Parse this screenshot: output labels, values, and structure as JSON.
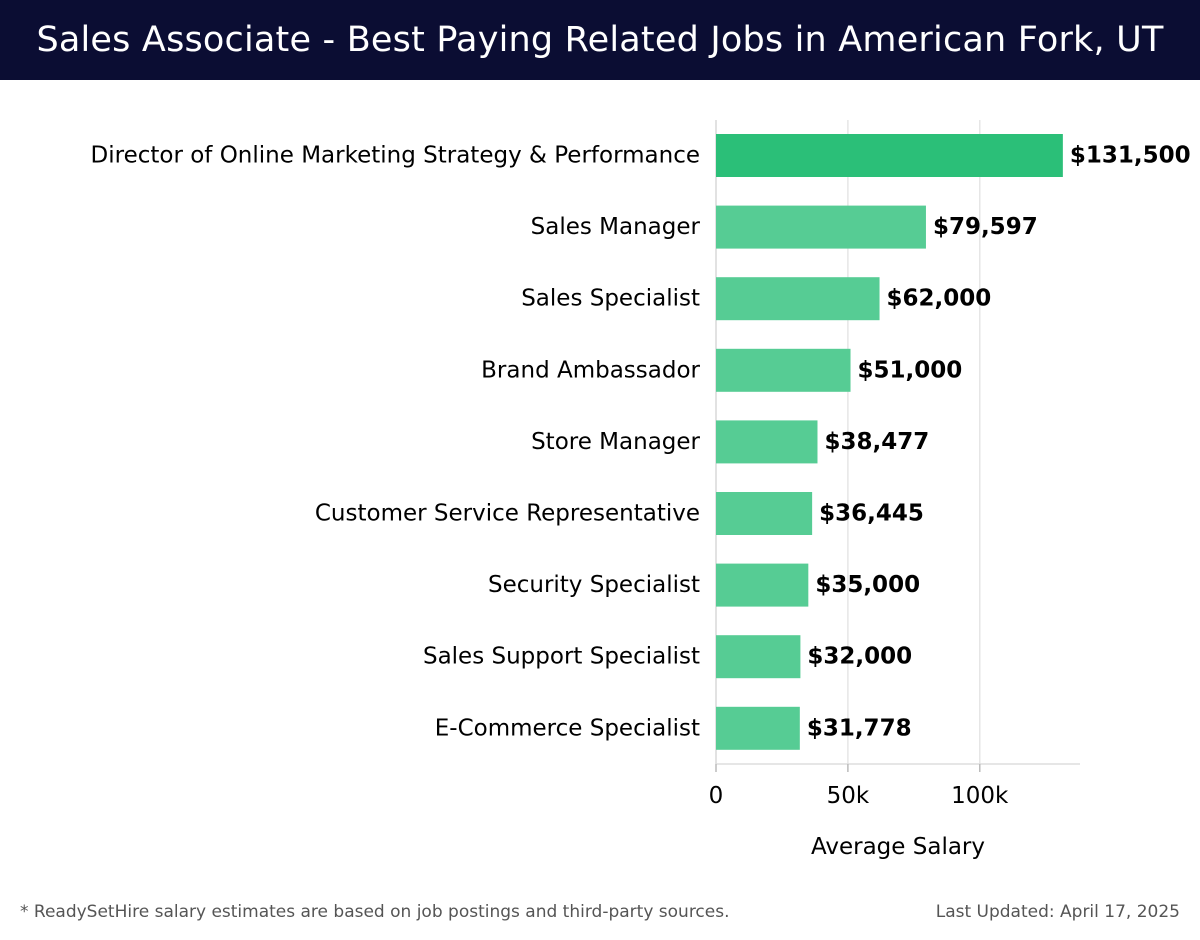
{
  "header": {
    "title": "Sales Associate - Best Paying Related Jobs in American Fork, UT"
  },
  "colors": {
    "header_background": "#0b0d33",
    "top_bar": "#2bbf78",
    "other_bars": "#56cc94",
    "gridline": "#e6e6e6"
  },
  "chart_data": {
    "type": "bar",
    "orientation": "horizontal",
    "categories": [
      "Director of Online Marketing Strategy & Performance",
      "Sales Manager",
      "Sales Specialist",
      "Brand Ambassador",
      "Store Manager",
      "Customer Service Representative",
      "Security Specialist",
      "Sales Support Specialist",
      "E-Commerce Specialist"
    ],
    "values": [
      131500,
      79597,
      62000,
      51000,
      38477,
      36445,
      35000,
      32000,
      31778
    ],
    "value_labels": [
      "$131,500",
      "$79,597",
      "$62,000",
      "$51,000",
      "$38,477",
      "$36,445",
      "$35,000",
      "$32,000",
      "$31,778"
    ],
    "xlabel": "Average Salary",
    "ylabel": "",
    "xlim": [
      0,
      138000
    ],
    "x_ticks": [
      0,
      50000,
      100000
    ],
    "x_tick_labels": [
      "0",
      "50k",
      "100k"
    ],
    "grid": "vertical"
  },
  "footer": {
    "note": "* ReadySetHire salary estimates are based on job postings and third-party sources.",
    "updated": "Last Updated: April 17, 2025"
  }
}
